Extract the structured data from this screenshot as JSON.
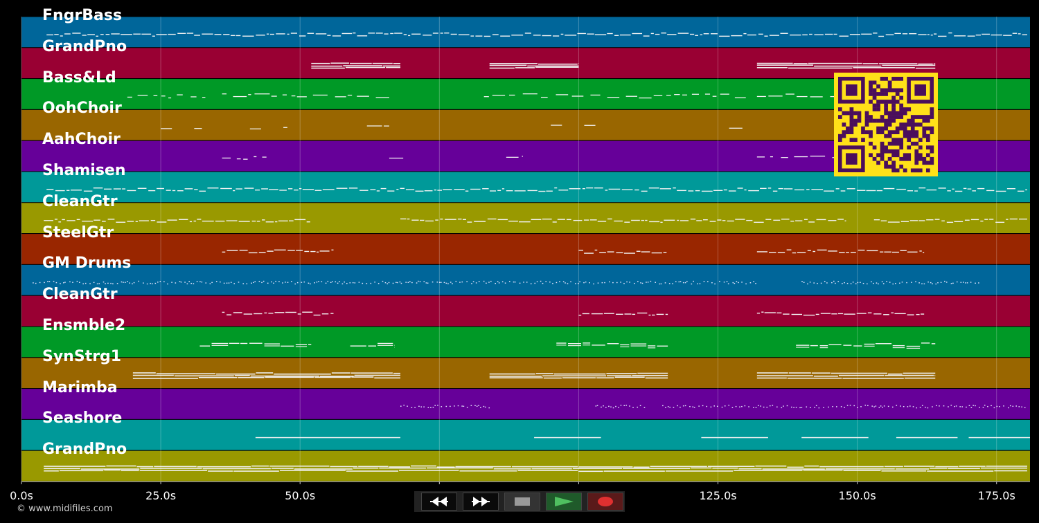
{
  "chart_data": {
    "type": "piano-roll",
    "xlim": [
      0,
      181
    ],
    "x_ticks": [
      "0.0s",
      "25.0s",
      "50.0s",
      "75.0s",
      "100.0s",
      "125.0s",
      "150.0s",
      "175.0s"
    ],
    "x_tick_values": [
      0,
      25,
      50,
      75,
      100,
      125,
      150,
      175
    ],
    "grid": true,
    "tracks": [
      {
        "name": "FngrBass",
        "color": "#00669a",
        "segments": [
          [
            4.5,
            180.5
          ]
        ],
        "density": "dense"
      },
      {
        "name": "GrandPno",
        "color": "#990033",
        "segments": [
          [
            52,
            68
          ],
          [
            84,
            100
          ],
          [
            132,
            164
          ]
        ],
        "density": "block"
      },
      {
        "name": "Bass&Ld",
        "color": "#009926",
        "segments": [
          [
            19,
            33
          ],
          [
            36,
            66
          ],
          [
            83,
            130
          ],
          [
            132,
            147
          ]
        ],
        "density": "sparse"
      },
      {
        "name": "OohChoir",
        "color": "#996600",
        "segments": [
          [
            25,
            27
          ],
          [
            31,
            33
          ],
          [
            41,
            43
          ],
          [
            47,
            49
          ],
          [
            62,
            66
          ],
          [
            95,
            97
          ],
          [
            101,
            103
          ],
          [
            127,
            130
          ]
        ],
        "density": "sparse"
      },
      {
        "name": "AahChoir",
        "color": "#660099",
        "segments": [
          [
            36,
            44
          ],
          [
            66,
            69
          ],
          [
            87,
            90
          ],
          [
            132,
            152
          ]
        ],
        "density": "sparse"
      },
      {
        "name": "Shamisen",
        "color": "#009999",
        "segments": [
          [
            4.5,
            180.5
          ]
        ],
        "density": "dense"
      },
      {
        "name": "CleanGtr",
        "color": "#999900",
        "segments": [
          [
            4,
            52
          ],
          [
            68,
            148
          ],
          [
            153,
            180.5
          ]
        ],
        "density": "dense"
      },
      {
        "name": "SteelGtr",
        "color": "#992600",
        "segments": [
          [
            36,
            56
          ],
          [
            100,
            116
          ],
          [
            132,
            162
          ]
        ],
        "density": "dense"
      },
      {
        "name": "GM Drums",
        "color": "#00669a",
        "segments": [
          [
            2,
            132
          ],
          [
            140,
            172
          ]
        ],
        "density": "dots"
      },
      {
        "name": "CleanGtr",
        "color": "#990033",
        "segments": [
          [
            36,
            56
          ],
          [
            100,
            116
          ],
          [
            132,
            162
          ]
        ],
        "density": "dense"
      },
      {
        "name": "Ensmble2",
        "color": "#009926",
        "segments": [
          [
            32,
            52
          ],
          [
            59,
            67
          ],
          [
            96,
            116
          ],
          [
            139,
            164
          ]
        ],
        "density": "medium"
      },
      {
        "name": "SynStrg1",
        "color": "#996600",
        "segments": [
          [
            20,
            68
          ],
          [
            84,
            116
          ],
          [
            132,
            164
          ]
        ],
        "density": "block"
      },
      {
        "name": "Marimba",
        "color": "#660099",
        "segments": [
          [
            68,
            84
          ],
          [
            103,
            112
          ],
          [
            115,
            180.5
          ]
        ],
        "density": "dots"
      },
      {
        "name": "Seashore",
        "color": "#009999",
        "segments": [
          [
            42,
            68
          ],
          [
            92,
            104
          ],
          [
            122,
            134
          ],
          [
            140,
            152
          ],
          [
            157,
            168
          ],
          [
            170,
            181
          ]
        ],
        "density": "line"
      },
      {
        "name": "GrandPno",
        "color": "#999900",
        "segments": [
          [
            4,
            180.5
          ]
        ],
        "density": "block"
      }
    ]
  },
  "footer": {
    "copyright": "© www.midifiles.com"
  },
  "controls": [
    {
      "name": "rewind-button",
      "icon": "rewind-icon"
    },
    {
      "name": "fast-forward-button",
      "icon": "fast-forward-icon"
    },
    {
      "name": "stop-button",
      "icon": "stop-icon"
    },
    {
      "name": "play-button",
      "icon": "play-icon"
    },
    {
      "name": "record-button",
      "icon": "record-icon"
    }
  ],
  "overlay": {
    "icon": "qr-code-icon",
    "color": "#ffe119",
    "dark": "#4a0e5c"
  }
}
